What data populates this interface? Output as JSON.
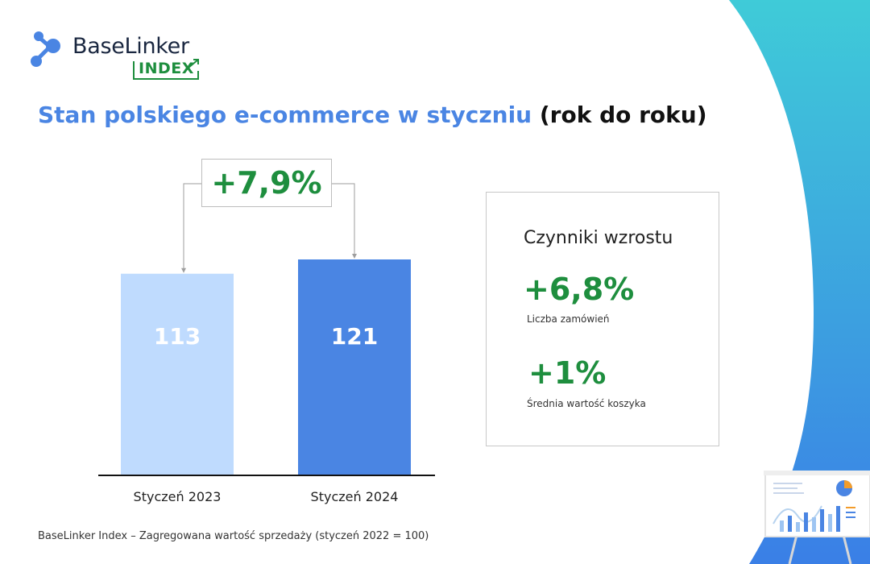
{
  "brand": {
    "name": "BaseLinker",
    "sub": "INDEX"
  },
  "title": {
    "main": "Stan polskiego e-commerce w styczniu",
    "suffix": "(rok do roku)"
  },
  "chart_data": {
    "type": "bar",
    "categories": [
      "Styczeń 2023",
      "Styczeń 2024"
    ],
    "values": [
      113,
      121
    ],
    "value_labels": [
      "113",
      "121"
    ],
    "colors": [
      "#bfdbfe",
      "#4a85e3"
    ],
    "change_label": "+7,9%",
    "ylim": [
      0,
      121
    ],
    "grid": false
  },
  "factors": {
    "title": "Czynniki wzrostu",
    "items": [
      {
        "value": "+6,8%",
        "label": "Liczba zamówień"
      },
      {
        "value": "+1%",
        "label": "Średnia wartość koszyka"
      }
    ]
  },
  "footnote": "BaseLinker Index – Zagregowana wartość sprzedaży (styczeń 2022 = 100)",
  "colors": {
    "accent_blue": "#4a85e3",
    "growth_green": "#1e8e3e",
    "wave_top": "#3fcbd8",
    "wave_bottom": "#3a7fe6"
  },
  "illustration": "presentation-board-icon"
}
